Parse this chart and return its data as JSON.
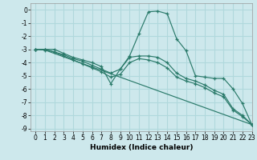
{
  "xlabel": "Humidex (Indice chaleur)",
  "xlim": [
    -0.5,
    23
  ],
  "ylim": [
    -9.2,
    0.5
  ],
  "background_color": "#cde8ec",
  "grid_color": "#b0d8dc",
  "line_color": "#2a7a6a",
  "lines": [
    {
      "x": [
        0,
        1,
        2,
        3,
        4,
        5,
        6,
        7,
        8,
        9,
        10,
        11,
        12,
        13,
        14,
        15,
        16,
        17,
        18,
        19,
        20,
        21,
        22,
        23
      ],
      "y": [
        -3.0,
        -3.0,
        -3.0,
        -3.3,
        -3.6,
        -3.8,
        -4.0,
        -4.3,
        -5.6,
        -4.5,
        -3.5,
        -1.8,
        -0.15,
        -0.1,
        -0.3,
        -2.2,
        -3.1,
        -5.0,
        -5.1,
        -5.2,
        -5.2,
        -6.0,
        -7.1,
        -8.7
      ]
    },
    {
      "x": [
        0,
        1,
        2,
        3,
        4,
        5,
        6,
        7,
        8,
        9,
        10,
        11,
        12,
        13,
        14,
        15,
        16,
        17,
        18,
        19,
        20,
        21,
        22,
        23
      ],
      "y": [
        -3.0,
        -3.0,
        -3.2,
        -3.4,
        -3.7,
        -3.9,
        -4.2,
        -4.5,
        -4.8,
        -4.5,
        -3.6,
        -3.5,
        -3.5,
        -3.6,
        -4.0,
        -4.8,
        -5.2,
        -5.4,
        -5.7,
        -6.1,
        -6.4,
        -7.5,
        -8.0,
        -8.7
      ]
    },
    {
      "x": [
        0,
        1,
        2,
        3,
        4,
        5,
        6,
        7,
        8,
        9,
        10,
        11,
        12,
        13,
        14,
        15,
        16,
        17,
        18,
        19,
        20,
        21,
        22,
        23
      ],
      "y": [
        -3.0,
        -3.0,
        -3.2,
        -3.5,
        -3.8,
        -4.1,
        -4.4,
        -4.7,
        -5.1,
        -4.9,
        -4.0,
        -3.7,
        -3.8,
        -4.0,
        -4.4,
        -5.1,
        -5.4,
        -5.6,
        -5.9,
        -6.3,
        -6.6,
        -7.6,
        -8.1,
        -8.7
      ]
    },
    {
      "x": [
        0,
        1,
        23
      ],
      "y": [
        -3.0,
        -3.05,
        -8.7
      ]
    }
  ],
  "xticks": [
    0,
    1,
    2,
    3,
    4,
    5,
    6,
    7,
    8,
    9,
    10,
    11,
    12,
    13,
    14,
    15,
    16,
    17,
    18,
    19,
    20,
    21,
    22,
    23
  ],
  "yticks": [
    0,
    -1,
    -2,
    -3,
    -4,
    -5,
    -6,
    -7,
    -8,
    -9
  ],
  "xlabel_fontsize": 6.5,
  "tick_fontsize": 5.5
}
